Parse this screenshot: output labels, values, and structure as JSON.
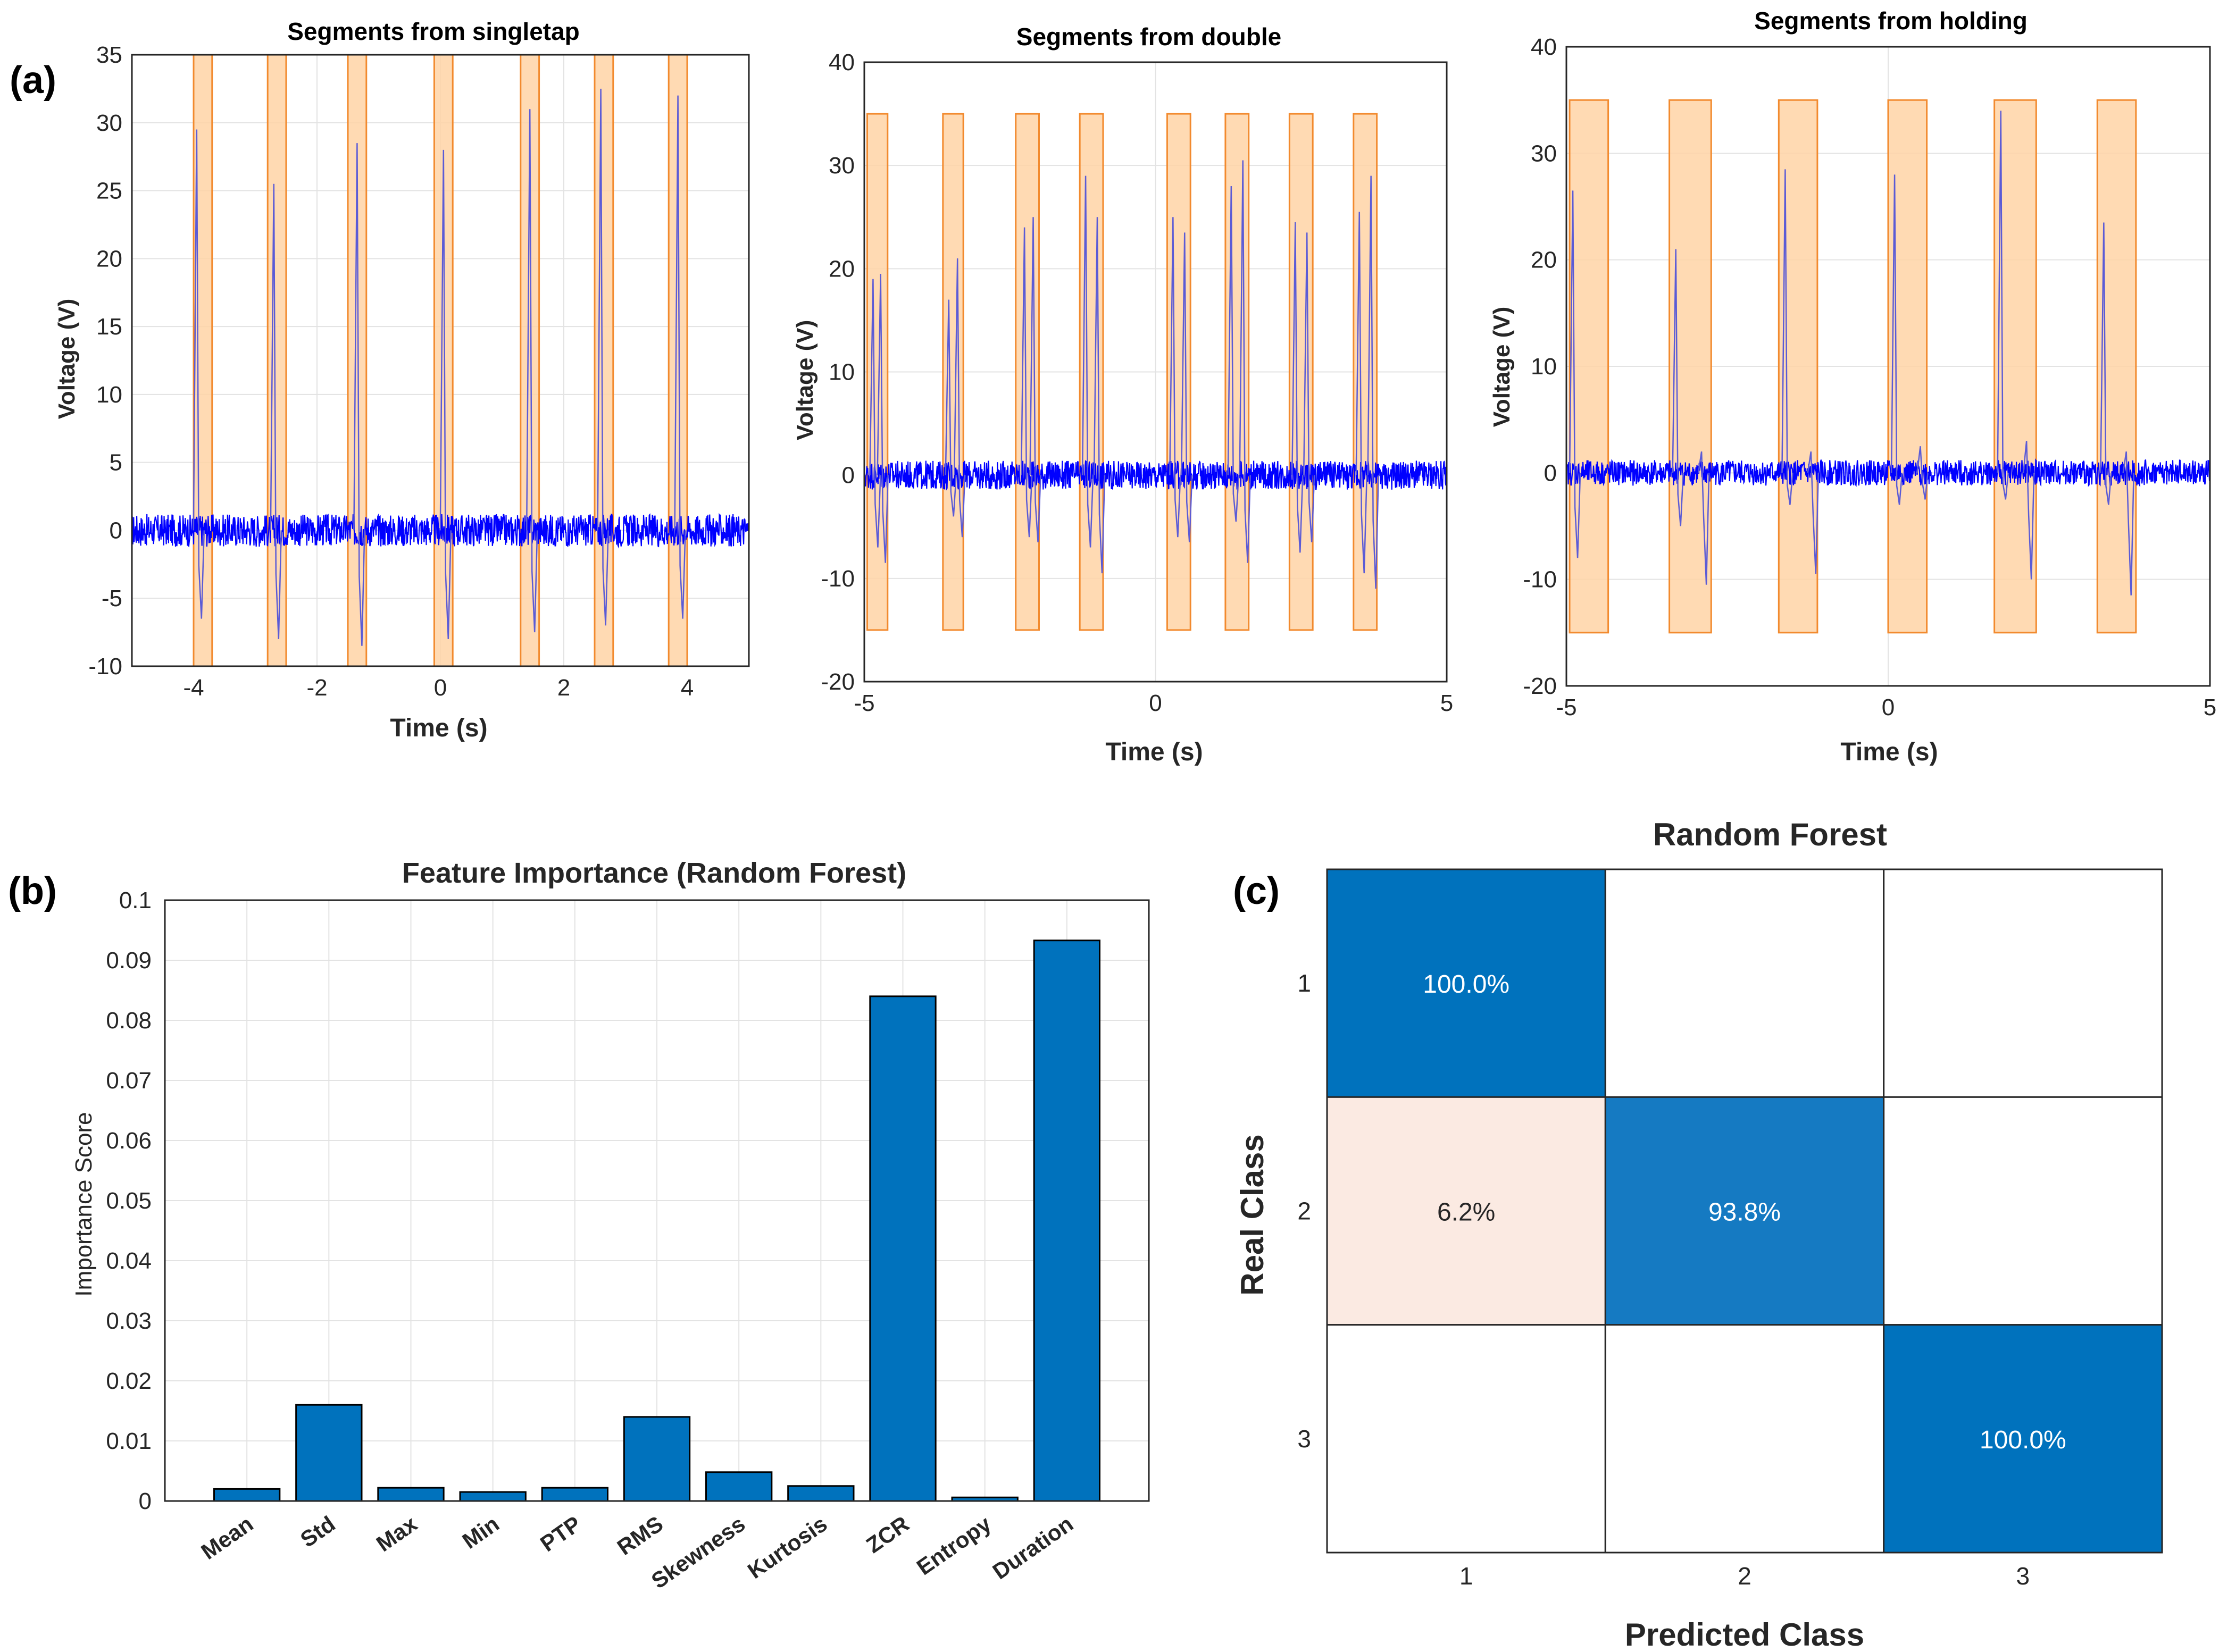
{
  "panel_labels": [
    "(a)",
    "(b)",
    "(c)"
  ],
  "colors": {
    "signal": "#0000ff",
    "segment_fill": "#ffd3a6",
    "segment_edge": "#f28a2e",
    "bar": "#0072bd",
    "grid": "#e3e3e3",
    "cm_high": "#0072bd",
    "cm_mid": "#157ac2",
    "cm_low": "#fbeae2"
  },
  "chart_data": [
    {
      "id": "singletap",
      "type": "line",
      "title": "Segments from singletap",
      "xlabel": "Time (s)",
      "ylabel": "Voltage (V)",
      "xlim": [
        -5,
        5
      ],
      "ylim": [
        -10,
        35
      ],
      "xticks": [
        -4,
        -2,
        0,
        2,
        4
      ],
      "xtick_labels": [
        "-4",
        "-2",
        "0",
        "2",
        "4"
      ],
      "yticks": [
        -10,
        -5,
        0,
        5,
        10,
        15,
        20,
        25,
        30,
        35
      ],
      "ytick_labels": [
        "-10",
        "-5",
        "0",
        "5",
        "10",
        "15",
        "20",
        "25",
        "30",
        "35"
      ],
      "grid": true,
      "segments": [
        {
          "x0": -4.0,
          "x1": -3.7,
          "ylo": -10,
          "yhi": 35
        },
        {
          "x0": -2.8,
          "x1": -2.5,
          "ylo": -10,
          "yhi": 35
        },
        {
          "x0": -1.5,
          "x1": -1.2,
          "ylo": -10,
          "yhi": 35
        },
        {
          "x0": -0.1,
          "x1": 0.2,
          "ylo": -10,
          "yhi": 35
        },
        {
          "x0": 1.3,
          "x1": 1.6,
          "ylo": -10,
          "yhi": 35
        },
        {
          "x0": 2.5,
          "x1": 2.8,
          "ylo": -10,
          "yhi": 35
        },
        {
          "x0": 3.7,
          "x1": 4.0,
          "ylo": -10,
          "yhi": 35
        }
      ],
      "noise_amplitude": 1.2,
      "spikes": [
        {
          "x": -3.95,
          "peak": 29.5,
          "trough": -6.5
        },
        {
          "x": -2.7,
          "peak": 25.5,
          "trough": -8.0
        },
        {
          "x": -1.35,
          "peak": 28.5,
          "trough": -8.5
        },
        {
          "x": 0.05,
          "peak": 28.0,
          "trough": -8.0
        },
        {
          "x": 1.45,
          "peak": 31.0,
          "trough": -7.5
        },
        {
          "x": 2.6,
          "peak": 32.5,
          "trough": -7.0
        },
        {
          "x": 3.85,
          "peak": 32.0,
          "trough": -6.5
        }
      ]
    },
    {
      "id": "double",
      "type": "line",
      "title": "Segments from double",
      "xlabel": "Time (s)",
      "ylabel": "Voltage (V)",
      "xlim": [
        -5,
        5
      ],
      "ylim": [
        -20,
        40
      ],
      "xticks": [
        -5,
        0,
        5
      ],
      "xtick_labels": [
        "-5",
        "0",
        "5"
      ],
      "yticks": [
        -20,
        -10,
        0,
        10,
        20,
        30,
        40
      ],
      "ytick_labels": [
        "-20",
        "-10",
        "0",
        "10",
        "20",
        "30",
        "40"
      ],
      "grid": true,
      "segments": [
        {
          "x0": -4.95,
          "x1": -4.6,
          "ylo": -15,
          "yhi": 35
        },
        {
          "x0": -3.65,
          "x1": -3.3,
          "ylo": -15,
          "yhi": 35
        },
        {
          "x0": -2.4,
          "x1": -2.0,
          "ylo": -15,
          "yhi": 35
        },
        {
          "x0": -1.3,
          "x1": -0.9,
          "ylo": -15,
          "yhi": 35
        },
        {
          "x0": 0.2,
          "x1": 0.6,
          "ylo": -15,
          "yhi": 35
        },
        {
          "x0": 1.2,
          "x1": 1.6,
          "ylo": -15,
          "yhi": 35
        },
        {
          "x0": 2.3,
          "x1": 2.7,
          "ylo": -15,
          "yhi": 35
        },
        {
          "x0": 3.4,
          "x1": 3.8,
          "ylo": -15,
          "yhi": 35
        }
      ],
      "noise_amplitude": 1.4,
      "spikes": [
        {
          "x": -4.85,
          "peak": 19.0,
          "trough": -7.0
        },
        {
          "x": -4.72,
          "peak": 19.5,
          "trough": -8.5
        },
        {
          "x": -3.55,
          "peak": 17.0,
          "trough": -4.0
        },
        {
          "x": -3.4,
          "peak": 21.0,
          "trough": -6.0
        },
        {
          "x": -2.25,
          "peak": 24.0,
          "trough": -6.0
        },
        {
          "x": -2.1,
          "peak": 25.0,
          "trough": -6.5
        },
        {
          "x": -1.2,
          "peak": 29.0,
          "trough": -7.0
        },
        {
          "x": -1.0,
          "peak": 25.0,
          "trough": -9.5
        },
        {
          "x": 0.3,
          "peak": 25.0,
          "trough": -6.0
        },
        {
          "x": 0.5,
          "peak": 23.5,
          "trough": -6.5
        },
        {
          "x": 1.3,
          "peak": 28.0,
          "trough": -4.5
        },
        {
          "x": 1.5,
          "peak": 30.5,
          "trough": -8.5
        },
        {
          "x": 2.4,
          "peak": 24.5,
          "trough": -7.5
        },
        {
          "x": 2.6,
          "peak": 23.5,
          "trough": -6.5
        },
        {
          "x": 3.5,
          "peak": 25.5,
          "trough": -9.5
        },
        {
          "x": 3.7,
          "peak": 29.0,
          "trough": -11.0
        }
      ]
    },
    {
      "id": "holding",
      "type": "line",
      "title": "Segments from holding",
      "xlabel": "Time (s)",
      "ylabel": "Voltage (V)",
      "xlim": [
        -5,
        5
      ],
      "ylim": [
        -20,
        40
      ],
      "xticks": [
        -5,
        0,
        5
      ],
      "xtick_labels": [
        "-5",
        "0",
        "5"
      ],
      "yticks": [
        -20,
        -10,
        0,
        10,
        20,
        30,
        40
      ],
      "ytick_labels": [
        "-20",
        "-10",
        "0",
        "10",
        "20",
        "30",
        "40"
      ],
      "grid": true,
      "segments": [
        {
          "x0": -4.95,
          "x1": -4.35,
          "ylo": -15,
          "yhi": 35
        },
        {
          "x0": -3.4,
          "x1": -2.75,
          "ylo": -15,
          "yhi": 35
        },
        {
          "x0": -1.7,
          "x1": -1.1,
          "ylo": -15,
          "yhi": 35
        },
        {
          "x0": 0.0,
          "x1": 0.6,
          "ylo": -15,
          "yhi": 35
        },
        {
          "x0": 1.65,
          "x1": 2.3,
          "ylo": -15,
          "yhi": 35
        },
        {
          "x0": 3.25,
          "x1": 3.85,
          "ylo": -15,
          "yhi": 35
        }
      ],
      "noise_amplitude": 1.2,
      "spikes": [
        {
          "x": -4.9,
          "peak": 26.5,
          "trough": -8.0
        },
        {
          "x": -3.3,
          "peak": 21.0,
          "trough": -5.0
        },
        {
          "x": -2.9,
          "peak": 2.0,
          "trough": -10.5
        },
        {
          "x": -1.6,
          "peak": 28.5,
          "trough": -3.0
        },
        {
          "x": -1.2,
          "peak": 2.0,
          "trough": -9.5
        },
        {
          "x": 0.1,
          "peak": 28.0,
          "trough": -3.0
        },
        {
          "x": 0.5,
          "peak": 2.5,
          "trough": -2.5
        },
        {
          "x": 1.75,
          "peak": 34.0,
          "trough": -2.5
        },
        {
          "x": 2.15,
          "peak": 3.0,
          "trough": -10.0
        },
        {
          "x": 3.35,
          "peak": 23.5,
          "trough": -3.0
        },
        {
          "x": 3.7,
          "peak": 2.0,
          "trough": -11.5
        }
      ]
    },
    {
      "id": "importance",
      "type": "bar",
      "title": "Feature Importance (Random Forest)",
      "xlabel": "",
      "ylabel": "Importance Score",
      "categories": [
        "Mean",
        "Std",
        "Max",
        "Min",
        "PTP",
        "RMS",
        "Skewness",
        "Kurtosis",
        "ZCR",
        "Entropy",
        "Duration"
      ],
      "values": [
        0.002,
        0.016,
        0.0022,
        0.0015,
        0.0022,
        0.014,
        0.0048,
        0.0025,
        0.084,
        0.0006,
        0.0933
      ],
      "ylim": [
        0,
        0.1
      ],
      "yticks": [
        0,
        0.01,
        0.02,
        0.03,
        0.04,
        0.05,
        0.06,
        0.07,
        0.08,
        0.09,
        0.1
      ],
      "ytick_labels": [
        "0",
        "0.01",
        "0.02",
        "0.03",
        "0.04",
        "0.05",
        "0.06",
        "0.07",
        "0.08",
        "0.09",
        "0.1"
      ],
      "grid": true
    },
    {
      "id": "confusion",
      "type": "heatmap",
      "title": "Random Forest",
      "xlabel": "Predicted Class",
      "ylabel": "Real Class",
      "x_categories": [
        "1",
        "2",
        "3"
      ],
      "y_categories": [
        "1",
        "2",
        "3"
      ],
      "values": [
        [
          100.0,
          0,
          0
        ],
        [
          6.2,
          93.8,
          0
        ],
        [
          0,
          0,
          100.0
        ]
      ],
      "cell_labels": [
        [
          "100.0%",
          "",
          ""
        ],
        [
          "6.2%",
          "93.8%",
          ""
        ],
        [
          "",
          "",
          "100.0%"
        ]
      ]
    }
  ]
}
